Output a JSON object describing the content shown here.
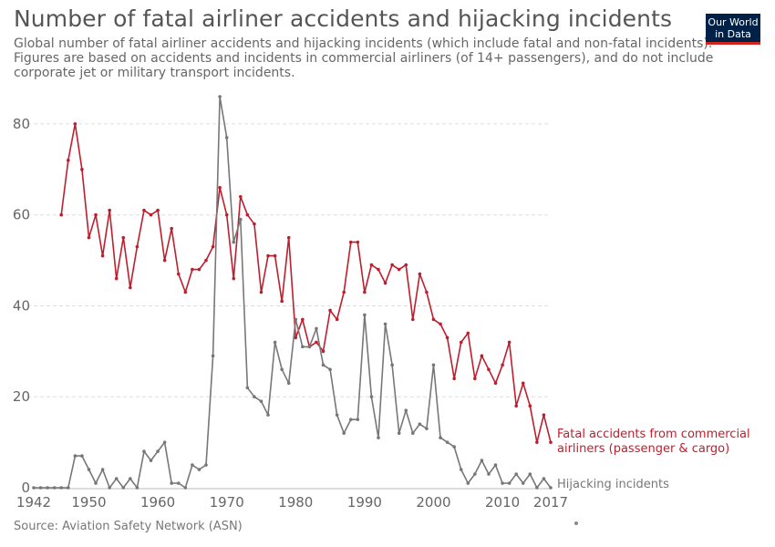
{
  "title": "Number of fatal airliner accidents and hijacking incidents",
  "subtitle": "Global number of fatal airliner accidents and hijacking incidents (which include fatal and non-fatal incidents). Figures are based on accidents and incidents in commercial airliners (of 14+ passengers), and do not include corporate jet or military transport incidents.",
  "logo": {
    "line1": "Our World",
    "line2": "in Data"
  },
  "source": "Source: Aviation Safety Network (ASN)",
  "chart_data": {
    "type": "line",
    "title": "Number of fatal airliner accidents and hijacking incidents",
    "xlabel": "",
    "ylabel": "",
    "xlim": [
      1942,
      2017
    ],
    "ylim": [
      0,
      86
    ],
    "grid": true,
    "x_ticks": [
      1942,
      1950,
      1960,
      1970,
      1980,
      1990,
      2000,
      2010,
      2017
    ],
    "y_ticks": [
      0,
      20,
      40,
      60,
      80
    ],
    "series": [
      {
        "name": "Fatal accidents from commercial airliners (passenger & cargo)",
        "label_lines": [
          "Fatal accidents from commercial",
          "airliners (passenger & cargo)"
        ],
        "color": "#be1e2d",
        "x": [
          1946,
          1947,
          1948,
          1949,
          1950,
          1951,
          1952,
          1953,
          1954,
          1955,
          1956,
          1957,
          1958,
          1959,
          1960,
          1961,
          1962,
          1963,
          1964,
          1965,
          1966,
          1967,
          1968,
          1969,
          1970,
          1971,
          1972,
          1973,
          1974,
          1975,
          1976,
          1977,
          1978,
          1979,
          1980,
          1981,
          1982,
          1983,
          1984,
          1985,
          1986,
          1987,
          1988,
          1989,
          1990,
          1991,
          1992,
          1993,
          1994,
          1995,
          1996,
          1997,
          1998,
          1999,
          2000,
          2001,
          2002,
          2003,
          2004,
          2005,
          2006,
          2007,
          2008,
          2009,
          2010,
          2011,
          2012,
          2013,
          2014,
          2015,
          2016,
          2017
        ],
        "values": [
          60,
          72,
          80,
          70,
          55,
          60,
          51,
          61,
          46,
          55,
          44,
          53,
          61,
          60,
          61,
          50,
          57,
          47,
          43,
          48,
          48,
          50,
          53,
          66,
          60,
          46,
          64,
          60,
          58,
          43,
          51,
          51,
          41,
          55,
          33,
          37,
          31,
          32,
          30,
          39,
          37,
          43,
          54,
          54,
          43,
          49,
          48,
          45,
          49,
          48,
          49,
          37,
          47,
          43,
          37,
          36,
          33,
          24,
          32,
          34,
          24,
          29,
          26,
          23,
          27,
          32,
          18,
          23,
          18,
          10,
          16,
          10
        ]
      },
      {
        "name": "Hijacking incidents",
        "label_lines": [
          "Hijacking incidents"
        ],
        "color": "#777777",
        "x": [
          1942,
          1943,
          1944,
          1945,
          1946,
          1947,
          1948,
          1949,
          1950,
          1951,
          1952,
          1953,
          1954,
          1955,
          1956,
          1957,
          1958,
          1959,
          1960,
          1961,
          1962,
          1963,
          1964,
          1965,
          1966,
          1967,
          1968,
          1969,
          1970,
          1971,
          1972,
          1973,
          1974,
          1975,
          1976,
          1977,
          1978,
          1979,
          1980,
          1981,
          1982,
          1983,
          1984,
          1985,
          1986,
          1987,
          1988,
          1989,
          1990,
          1991,
          1992,
          1993,
          1994,
          1995,
          1996,
          1997,
          1998,
          1999,
          2000,
          2001,
          2002,
          2003,
          2004,
          2005,
          2006,
          2007,
          2008,
          2009,
          2010,
          2011,
          2012,
          2013,
          2014,
          2015,
          2016,
          2017
        ],
        "values": [
          0,
          0,
          0,
          0,
          0,
          0,
          7,
          7,
          4,
          1,
          4,
          0,
          2,
          0,
          2,
          0,
          8,
          6,
          8,
          10,
          1,
          1,
          0,
          5,
          4,
          5,
          29,
          86,
          77,
          54,
          59,
          22,
          20,
          19,
          16,
          32,
          26,
          23,
          37,
          31,
          31,
          35,
          27,
          26,
          16,
          12,
          15,
          15,
          38,
          20,
          11,
          36,
          27,
          12,
          17,
          12,
          14,
          13,
          27,
          11,
          10,
          9,
          4,
          1,
          3,
          6,
          3,
          5,
          1,
          1,
          3,
          1,
          3,
          0,
          2,
          0
        ]
      }
    ]
  }
}
